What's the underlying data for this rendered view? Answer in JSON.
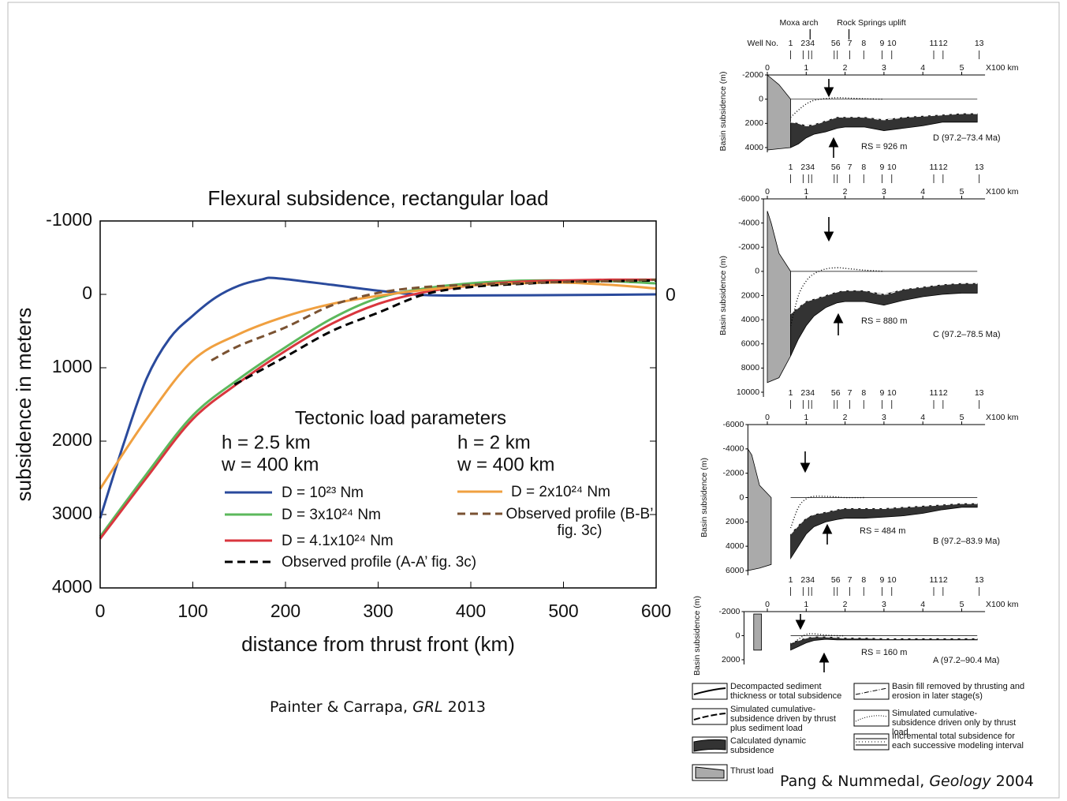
{
  "chart_data": [
    {
      "type": "line",
      "title": "Flexural subsidence, rectangular load",
      "x_label": "distance from thrust front (km)",
      "y_label": "subsidence in meters",
      "xlim": [
        0,
        600
      ],
      "xticks": [
        0,
        100,
        200,
        300,
        400,
        500,
        600
      ],
      "ylim": [
        4000,
        -1000
      ],
      "yticks": [
        -1000,
        0,
        1000,
        2000,
        3000,
        4000
      ],
      "y2lim": [
        4000,
        -1000
      ],
      "y2ticks": [
        0
      ],
      "legend_title": "Tectonic load parameters",
      "legend_groups": [
        {
          "h": "h = 2.5 km",
          "w": "w = 400 km"
        },
        {
          "h": "h = 2 km",
          "w": "w = 400 km"
        }
      ],
      "series": [
        {
          "name": "D = 10²³ Nm",
          "color": "#2a4a9c",
          "dash": false,
          "x": [
            0,
            25,
            50,
            75,
            100,
            125,
            150,
            175,
            190,
            250,
            300,
            350,
            400,
            500,
            600
          ],
          "values": [
            3050,
            2050,
            1150,
            600,
            290,
            40,
            -120,
            -205,
            -220,
            -130,
            -50,
            10,
            15,
            10,
            0
          ]
        },
        {
          "name": "D = 3x10²⁴ Nm",
          "color": "#5cb85c",
          "dash": false,
          "x": [
            0,
            50,
            100,
            150,
            200,
            250,
            300,
            350,
            400,
            450,
            500,
            550,
            600
          ],
          "values": [
            3300,
            2450,
            1650,
            1150,
            720,
            330,
            50,
            -80,
            -150,
            -185,
            -190,
            -180,
            -150
          ]
        },
        {
          "name": "D = 4.1x10²⁴ Nm",
          "color": "#d9363e",
          "dash": false,
          "x": [
            0,
            50,
            100,
            150,
            200,
            250,
            300,
            350,
            400,
            450,
            500,
            550,
            600
          ],
          "values": [
            3330,
            2500,
            1700,
            1200,
            770,
            400,
            130,
            -30,
            -120,
            -170,
            -190,
            -200,
            -200
          ]
        },
        {
          "name": "D = 2x10²⁴ Nm",
          "color": "#f0a040",
          "dash": false,
          "x": [
            0,
            50,
            100,
            150,
            200,
            250,
            300,
            350,
            400,
            450,
            500,
            550,
            600
          ],
          "values": [
            2650,
            1700,
            900,
            540,
            300,
            130,
            20,
            -60,
            -120,
            -150,
            -160,
            -130,
            -80
          ]
        },
        {
          "name": "Observed profile (A-A’ fig. 3c)",
          "color": "#000000",
          "dash": true,
          "x": [
            145,
            200,
            250,
            300,
            350,
            400,
            450,
            500,
            550,
            600
          ],
          "values": [
            1230,
            850,
            500,
            250,
            0,
            -100,
            -140,
            -170,
            -180,
            -190
          ]
        },
        {
          "name": "Observed profile (B-B’ fig. 3c)",
          "color": "#7a5232",
          "dash": true,
          "x": [
            120,
            150,
            200,
            250,
            300,
            350,
            400,
            450,
            500,
            550,
            600
          ],
          "values": [
            900,
            700,
            450,
            150,
            -20,
            -100,
            -130,
            -150,
            -170,
            -180,
            -200
          ]
        }
      ],
      "credit": {
        "authors": "Painter & Carrapa,",
        "journal": "GRL",
        "year": "2013"
      }
    },
    {
      "type": "subsidence-profile",
      "y_label": "Basin subsidence (m)",
      "x_unit": "X100 km",
      "xlim": [
        0,
        5.6
      ],
      "xticks": [
        0,
        1,
        2,
        3,
        4,
        5
      ],
      "ylim": [
        4000,
        -2000
      ],
      "yticks": [
        -2000,
        0,
        2000,
        4000
      ],
      "x": [
        0.6,
        0.8,
        1,
        1.2,
        1.5,
        1.8,
        2,
        2.5,
        3,
        3.5,
        4,
        4.5,
        5,
        5.4
      ],
      "dynamic": {
        "color": "#333333",
        "values": [
          4000,
          3700,
          3200,
          2900,
          2700,
          2400,
          2300,
          2300,
          2600,
          2400,
          2200,
          1900,
          1900,
          1900
        ],
        "base": [
          1900,
          2000,
          2200,
          2100,
          1800,
          1500,
          1500,
          1500,
          1700,
          1500,
          1400,
          1300,
          1200,
          1200
        ]
      },
      "thrust_only": {
        "values": [
          1500,
          900,
          400,
          100,
          -50,
          -120,
          -100,
          -30,
          0,
          null,
          null,
          null,
          null,
          null
        ]
      },
      "load": {
        "color": "#aaaaaa",
        "x": [
          0,
          0.3,
          0.6,
          0.6,
          0.3,
          0
        ],
        "values": [
          -2000,
          -1200,
          0,
          4000,
          4100,
          4200
        ]
      },
      "rs": "RS = 926 m",
      "label": "D (97.2–73.4 Ma)"
    },
    {
      "type": "subsidence-profile",
      "y_label": "Basin subsidence (m)",
      "x_unit": "X100 km",
      "xlim": [
        -0.1,
        5.6
      ],
      "xticks": [
        0,
        1,
        2,
        3,
        4,
        5
      ],
      "ylim": [
        10000,
        -6000
      ],
      "yticks": [
        -6000,
        -4000,
        -2000,
        0,
        2000,
        4000,
        6000,
        8000,
        10000
      ],
      "x": [
        0.6,
        0.8,
        1,
        1.2,
        1.5,
        1.8,
        2,
        2.5,
        3,
        3.5,
        4,
        4.5,
        5,
        5.4
      ],
      "dynamic": {
        "color": "#333333",
        "values": [
          7000,
          5600,
          4500,
          3700,
          3000,
          2600,
          2500,
          2500,
          2800,
          2400,
          2100,
          1900,
          1800,
          1800
        ],
        "base": [
          3500,
          3000,
          2500,
          2300,
          2000,
          1700,
          1600,
          1600,
          1900,
          1500,
          1300,
          1100,
          1000,
          1000
        ]
      },
      "thrust_only": {
        "values": [
          4500,
          2000,
          800,
          200,
          -200,
          -300,
          -250,
          -100,
          0,
          null,
          null,
          null,
          null,
          null
        ]
      },
      "load": {
        "color": "#aaaaaa",
        "x": [
          0,
          0.1,
          0.3,
          0.6,
          0.6,
          0.3,
          0
        ],
        "values": [
          -5000,
          -4000,
          -1500,
          0,
          7000,
          8800,
          9200
        ]
      },
      "rs": "RS = 880 m",
      "label": "C (97.2–78.5 Ma)"
    },
    {
      "type": "subsidence-profile",
      "y_label": "Basin subsidence (m)",
      "x_unit": "X100 km",
      "xlim": [
        -0.5,
        5.6
      ],
      "xticks": [
        0,
        1,
        2,
        3,
        4,
        5
      ],
      "ylim": [
        6000,
        -6000
      ],
      "yticks": [
        -6000,
        -4000,
        -2000,
        0,
        2000,
        4000,
        6000
      ],
      "x": [
        0.6,
        0.8,
        1,
        1.2,
        1.5,
        1.8,
        2,
        2.5,
        3,
        3.5,
        4,
        4.5,
        5,
        5.4
      ],
      "dynamic": {
        "color": "#333333",
        "values": [
          5000,
          4000,
          3000,
          2400,
          2000,
          1800,
          1700,
          1700,
          1600,
          1500,
          1300,
          1000,
          800,
          800
        ],
        "base": [
          3000,
          2300,
          1700,
          1400,
          1200,
          1000,
          900,
          900,
          900,
          800,
          700,
          600,
          500,
          500
        ]
      },
      "thrust_only": {
        "values": [
          2500,
          800,
          100,
          -100,
          -100,
          -50,
          0,
          0,
          null,
          null,
          null,
          null,
          null,
          null
        ]
      },
      "load": {
        "color": "#aaaaaa",
        "x": [
          -0.5,
          -0.4,
          -0.2,
          0.1,
          0.1,
          -0.2,
          -0.5
        ],
        "values": [
          -4000,
          -3500,
          -1000,
          0,
          5500,
          5800,
          6000
        ]
      },
      "rs": "RS = 484 m",
      "label": "B (97.2–83.9 Ma)"
    },
    {
      "type": "subsidence-profile",
      "y_label": "Basin subsidence (m)",
      "x_unit": "X100 km",
      "xlim": [
        -0.6,
        5.6
      ],
      "xticks": [
        0,
        1,
        2,
        3,
        4,
        5
      ],
      "ylim": [
        2000,
        -2000
      ],
      "yticks": [
        -2000,
        0,
        2000
      ],
      "x": [
        0.6,
        0.8,
        1,
        1.2,
        1.5,
        1.8,
        2,
        2.5,
        3,
        3.5,
        4,
        4.5,
        5,
        5.4
      ],
      "dynamic": {
        "color": "#333333",
        "values": [
          1200,
          900,
          600,
          400,
          300,
          350,
          350,
          350,
          350,
          350,
          350,
          350,
          350,
          350
        ],
        "base": [
          600,
          400,
          200,
          100,
          100,
          150,
          200,
          200,
          250,
          250,
          250,
          250,
          250,
          250
        ]
      },
      "thrust_only": {
        "values": [
          800,
          300,
          -100,
          -150,
          -50,
          0,
          0,
          null,
          null,
          null,
          null,
          null,
          null,
          null
        ]
      },
      "load": {
        "color": "#aaaaaa",
        "x": [
          -0.35,
          -0.35,
          -0.15,
          -0.15
        ],
        "values": [
          -1800,
          1200,
          1200,
          -1800
        ]
      },
      "rs": "RS = 160 m",
      "label": "A (97.2–90.4 Ma)"
    }
  ],
  "well_header": {
    "label": "Well No.",
    "wells": [
      {
        "label": "1",
        "x": [
          0.6
        ]
      },
      {
        "label": "2",
        "x": [
          0.92
        ]
      },
      {
        "label": "34",
        "x": [
          1.06,
          1.14
        ]
      },
      {
        "label": "56",
        "x": [
          1.72,
          1.8
        ]
      },
      {
        "label": "7",
        "x": [
          2.12
        ]
      },
      {
        "label": "8",
        "x": [
          2.48
        ]
      },
      {
        "label": "9",
        "x": [
          2.95
        ]
      },
      {
        "label": "10",
        "x": [
          3.2
        ]
      },
      {
        "label": "11",
        "x": [
          4.28
        ]
      },
      {
        "label": "12",
        "x": [
          4.52
        ]
      },
      {
        "label": "13",
        "x": [
          5.45
        ]
      }
    ],
    "arches": [
      {
        "text": "Moxa arch",
        "x": 1.1
      },
      {
        "text": "Rock Springs uplift",
        "x": 2.1
      }
    ]
  },
  "right_legend": [
    "Decompacted sediment thickness or total subsidence",
    "Simulated cumulative-subsidence driven by thrust plus sediment load",
    "Calculated dynamic subsidence",
    "Thrust load",
    "Basin fill removed by thrusting and erosion in later stage(s)",
    "Simulated cumulative-subsidence driven only by thrust load",
    "Incremental total subsidence for each successive modeling interval"
  ],
  "right_credit": {
    "authors": "Pang & Nummedal,",
    "journal": "Geology",
    "year": "2004"
  }
}
